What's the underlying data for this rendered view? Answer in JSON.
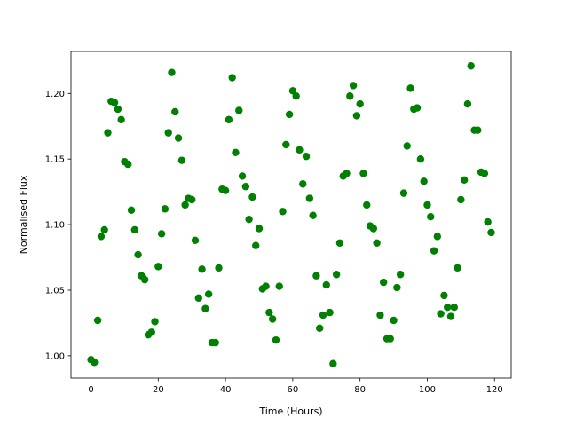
{
  "chart_data": {
    "type": "scatter",
    "x_label": "Time (Hours)",
    "y_label": "Normalised Flux",
    "color": "#008000",
    "xlim": [
      -5.95,
      124.95
    ],
    "ylim": [
      0.983,
      1.232
    ],
    "xticks": [
      0,
      20,
      40,
      60,
      80,
      100,
      120
    ],
    "yticks": [
      {
        "value": 1.0,
        "label": "1.00"
      },
      1.05,
      {
        "value": 1.1,
        "label": "1.10"
      },
      1.15,
      {
        "value": 1.2,
        "label": "1.20"
      }
    ],
    "x": [
      0,
      1,
      2,
      3,
      4,
      5,
      6,
      7,
      8,
      9,
      10,
      11,
      12,
      13,
      14,
      15,
      16,
      17,
      18,
      19,
      20,
      21,
      22,
      23,
      24,
      25,
      26,
      27,
      28,
      29,
      30,
      31,
      32,
      33,
      34,
      35,
      36,
      37,
      38,
      39,
      40,
      41,
      42,
      43,
      44,
      45,
      46,
      47,
      48,
      49,
      50,
      51,
      52,
      53,
      54,
      55,
      56,
      57,
      58,
      59,
      60,
      61,
      62,
      63,
      64,
      65,
      66,
      67,
      68,
      69,
      70,
      71,
      72,
      73,
      74,
      75,
      76,
      77,
      78,
      79,
      80,
      81,
      82,
      83,
      84,
      85,
      86,
      87,
      88,
      89,
      90,
      91,
      92,
      93,
      94,
      95,
      96,
      97,
      98,
      99,
      100,
      101,
      102,
      103,
      104,
      105,
      106,
      107,
      108,
      109,
      110,
      111,
      112,
      113,
      114,
      115,
      116,
      117,
      118,
      119
    ],
    "values": [
      0.997,
      0.995,
      1.027,
      1.091,
      1.096,
      1.17,
      1.194,
      1.193,
      1.188,
      1.18,
      1.148,
      1.146,
      1.111,
      1.096,
      1.077,
      1.061,
      1.058,
      1.016,
      1.018,
      1.026,
      1.068,
      1.093,
      1.112,
      1.17,
      1.216,
      1.186,
      1.166,
      1.149,
      1.115,
      1.12,
      1.119,
      1.088,
      1.044,
      1.066,
      1.036,
      1.047,
      1.01,
      1.01,
      1.067,
      1.127,
      1.126,
      1.18,
      1.212,
      1.155,
      1.187,
      1.137,
      1.129,
      1.104,
      1.121,
      1.084,
      1.097,
      1.051,
      1.053,
      1.033,
      1.028,
      1.012,
      1.053,
      1.11,
      1.161,
      1.184,
      1.202,
      1.198,
      1.157,
      1.131,
      1.152,
      1.12,
      1.107,
      1.061,
      1.021,
      1.031,
      1.054,
      1.033,
      0.994,
      1.062,
      1.086,
      1.137,
      1.139,
      1.198,
      1.206,
      1.183,
      1.192,
      1.139,
      1.115,
      1.099,
      1.097,
      1.086,
      1.031,
      1.056,
      1.013,
      1.013,
      1.027,
      1.052,
      1.062,
      1.124,
      1.16,
      1.204,
      1.188,
      1.189,
      1.15,
      1.133,
      1.115,
      1.106,
      1.08,
      1.091,
      1.032,
      1.046,
      1.037,
      1.03,
      1.037,
      1.067,
      1.119,
      1.134,
      1.192,
      1.221,
      1.172,
      1.172,
      1.14,
      1.139,
      1.102,
      1.094
    ]
  }
}
